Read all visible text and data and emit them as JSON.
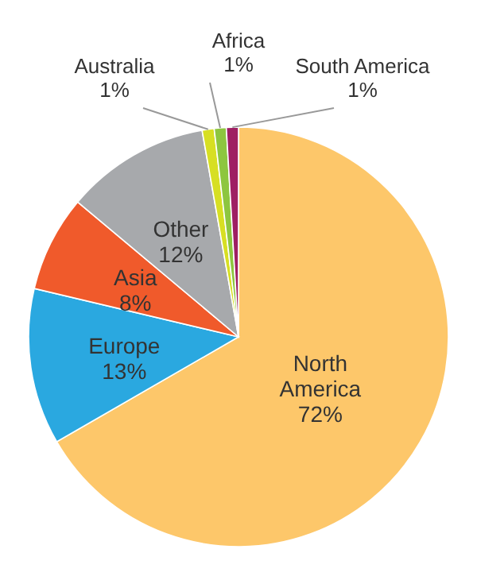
{
  "chart_data": {
    "type": "pie",
    "categories": [
      "North America",
      "Europe",
      "Asia",
      "Other",
      "Australia",
      "Africa",
      "South America"
    ],
    "values": [
      72,
      13,
      8,
      12,
      1,
      1,
      1
    ],
    "colors": [
      "#fdc76a",
      "#2aa8e0",
      "#f05a2b",
      "#a7a9ac",
      "#d7df23",
      "#8dc63f",
      "#9e1f63"
    ],
    "value_labels": [
      "72%",
      "13%",
      "8%",
      "12%",
      "1%",
      "1%",
      "1%"
    ]
  }
}
